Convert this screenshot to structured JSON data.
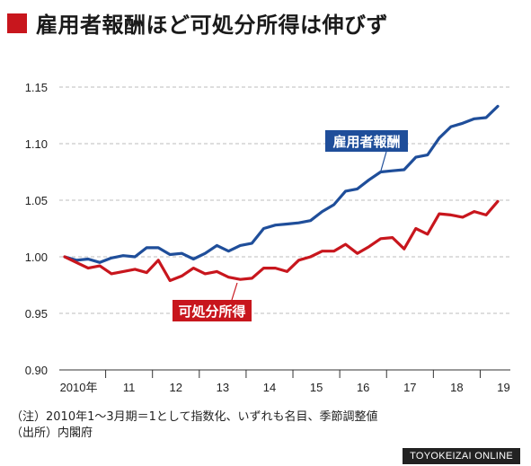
{
  "header": {
    "title": "雇用者報酬ほど可処分所得は伸びず"
  },
  "notes": {
    "note": "（注）2010年1～3月期＝1として指数化、いずれも名目、季節調整値",
    "source": "（出所）内閣府"
  },
  "footer": {
    "brand": "TOYOKEIZAI ONLINE"
  },
  "colors": {
    "accent": "#c8161d",
    "compensation": "#1f4e9a",
    "disposable": "#c8161d",
    "grid": "#bdbdbd"
  },
  "chart_data": {
    "type": "line",
    "ylim": [
      0.9,
      1.15
    ],
    "yticks": [
      "1.15",
      "1.10",
      "1.05",
      "1.00",
      "0.95",
      "0.90"
    ],
    "xtick_labels": [
      "2010年",
      "11",
      "12",
      "13",
      "14",
      "15",
      "16",
      "17",
      "18",
      "19"
    ],
    "grid": true,
    "x": [
      "2010Q1",
      "2010Q2",
      "2010Q3",
      "2010Q4",
      "2011Q1",
      "2011Q2",
      "2011Q3",
      "2011Q4",
      "2012Q1",
      "2012Q2",
      "2012Q3",
      "2012Q4",
      "2013Q1",
      "2013Q2",
      "2013Q3",
      "2013Q4",
      "2014Q1",
      "2014Q2",
      "2014Q3",
      "2014Q4",
      "2015Q1",
      "2015Q2",
      "2015Q3",
      "2015Q4",
      "2016Q1",
      "2016Q2",
      "2016Q3",
      "2016Q4",
      "2017Q1",
      "2017Q2",
      "2017Q3",
      "2017Q4",
      "2018Q1",
      "2018Q2",
      "2018Q3",
      "2018Q4",
      "2019Q1",
      "2019Q2"
    ],
    "series": [
      {
        "name": "雇用者報酬",
        "values": [
          1.0,
          0.997,
          0.998,
          0.995,
          0.999,
          1.001,
          1.0,
          1.008,
          1.008,
          1.002,
          1.003,
          0.998,
          1.003,
          1.01,
          1.005,
          1.01,
          1.012,
          1.025,
          1.028,
          1.029,
          1.03,
          1.032,
          1.04,
          1.046,
          1.058,
          1.06,
          1.068,
          1.075,
          1.076,
          1.077,
          1.088,
          1.09,
          1.105,
          1.115,
          1.118,
          1.122,
          1.123,
          1.133
        ]
      },
      {
        "name": "可処分所得",
        "values": [
          1.0,
          0.995,
          0.99,
          0.992,
          0.985,
          0.987,
          0.989,
          0.986,
          0.997,
          0.979,
          0.983,
          0.99,
          0.985,
          0.987,
          0.982,
          0.98,
          0.981,
          0.99,
          0.99,
          0.987,
          0.997,
          1.0,
          1.005,
          1.005,
          1.011,
          1.003,
          1.009,
          1.016,
          1.017,
          1.007,
          1.025,
          1.02,
          1.038,
          1.037,
          1.035,
          1.04,
          1.037,
          1.049
        ]
      }
    ]
  }
}
